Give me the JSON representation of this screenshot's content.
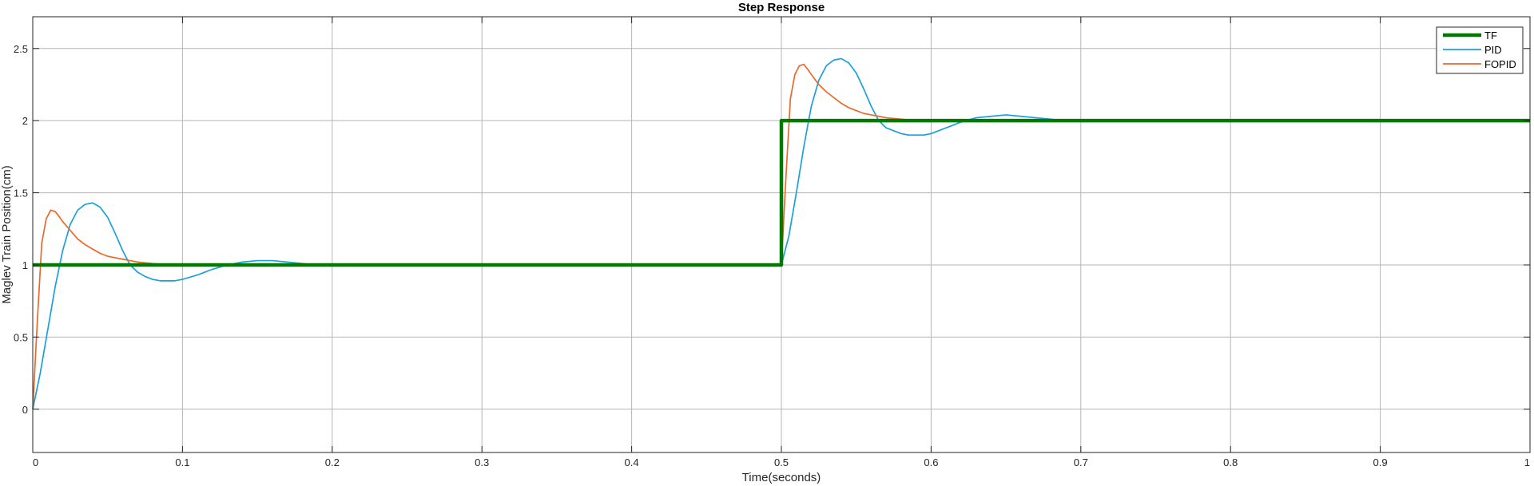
{
  "chart_data": {
    "type": "line",
    "title": "Step Response",
    "xlabel": "Time(seconds)",
    "ylabel": "Maglev Train Position(cm)",
    "xlim": [
      0,
      1
    ],
    "ylim": [
      -0.3,
      2.72
    ],
    "grid": true,
    "legend_position": "top-right",
    "x_ticks": [
      {
        "value": 0,
        "label": "0"
      },
      {
        "value": 0.1,
        "label": "0.1"
      },
      {
        "value": 0.2,
        "label": "0.2"
      },
      {
        "value": 0.3,
        "label": "0.3"
      },
      {
        "value": 0.4,
        "label": "0.4"
      },
      {
        "value": 0.5,
        "label": "0.5"
      },
      {
        "value": 0.6,
        "label": "0.6"
      },
      {
        "value": 0.7,
        "label": "0.7"
      },
      {
        "value": 0.8,
        "label": "0.8"
      },
      {
        "value": 0.9,
        "label": "0.9"
      },
      {
        "value": 1,
        "label": "1"
      }
    ],
    "y_ticks": [
      {
        "value": 0,
        "label": "0"
      },
      {
        "value": 0.5,
        "label": "0.5"
      },
      {
        "value": 1,
        "label": "1"
      },
      {
        "value": 1.5,
        "label": "1.5"
      },
      {
        "value": 2,
        "label": "2"
      },
      {
        "value": 2.5,
        "label": "2.5"
      }
    ],
    "series": [
      {
        "name": "TF",
        "color": "#007a00",
        "x": [
          0,
          0.5,
          0.5,
          1
        ],
        "y": [
          1,
          1,
          2,
          2
        ]
      },
      {
        "name": "PID",
        "color": "#1ca0dc",
        "x": [
          0,
          0.005,
          0.01,
          0.015,
          0.02,
          0.025,
          0.03,
          0.035,
          0.04,
          0.045,
          0.05,
          0.055,
          0.06,
          0.065,
          0.07,
          0.075,
          0.08,
          0.085,
          0.09,
          0.095,
          0.1,
          0.11,
          0.12,
          0.13,
          0.14,
          0.15,
          0.16,
          0.17,
          0.18,
          0.19,
          0.2,
          0.25,
          0.3,
          0.4,
          0.5,
          0.505,
          0.51,
          0.515,
          0.52,
          0.525,
          0.53,
          0.535,
          0.54,
          0.545,
          0.55,
          0.555,
          0.56,
          0.565,
          0.57,
          0.575,
          0.58,
          0.585,
          0.59,
          0.595,
          0.6,
          0.61,
          0.62,
          0.63,
          0.64,
          0.65,
          0.66,
          0.67,
          0.68,
          0.69,
          0.7,
          0.75,
          0.8,
          0.9,
          1
        ],
        "y": [
          0,
          0.25,
          0.55,
          0.85,
          1.1,
          1.28,
          1.38,
          1.42,
          1.43,
          1.4,
          1.33,
          1.22,
          1.1,
          1.0,
          0.95,
          0.92,
          0.9,
          0.89,
          0.89,
          0.89,
          0.9,
          0.93,
          0.97,
          1.0,
          1.02,
          1.03,
          1.03,
          1.02,
          1.01,
          1.0,
          1.0,
          1.0,
          1.0,
          1.0,
          1.0,
          1.2,
          1.5,
          1.82,
          2.1,
          2.28,
          2.38,
          2.42,
          2.43,
          2.4,
          2.33,
          2.22,
          2.1,
          2.0,
          1.95,
          1.93,
          1.91,
          1.9,
          1.9,
          1.9,
          1.91,
          1.95,
          1.99,
          2.02,
          2.03,
          2.04,
          2.03,
          2.02,
          2.01,
          2.0,
          2.0,
          2.0,
          2.0,
          2.0,
          2.0
        ]
      },
      {
        "name": "FOPID",
        "color": "#e8692a",
        "x": [
          0,
          0.003,
          0.006,
          0.009,
          0.012,
          0.015,
          0.018,
          0.02,
          0.025,
          0.03,
          0.035,
          0.04,
          0.045,
          0.05,
          0.055,
          0.06,
          0.065,
          0.07,
          0.08,
          0.09,
          0.1,
          0.12,
          0.15,
          0.2,
          0.3,
          0.5,
          0.503,
          0.506,
          0.509,
          0.512,
          0.515,
          0.518,
          0.52,
          0.525,
          0.53,
          0.535,
          0.54,
          0.545,
          0.55,
          0.555,
          0.56,
          0.565,
          0.57,
          0.58,
          0.59,
          0.6,
          0.62,
          0.65,
          0.7,
          0.8,
          1
        ],
        "y": [
          0,
          0.6,
          1.15,
          1.32,
          1.38,
          1.37,
          1.33,
          1.3,
          1.24,
          1.18,
          1.14,
          1.11,
          1.08,
          1.06,
          1.05,
          1.04,
          1.03,
          1.02,
          1.01,
          1.0,
          1.0,
          1.0,
          1.0,
          1.0,
          1.0,
          1.0,
          1.6,
          2.15,
          2.32,
          2.38,
          2.39,
          2.35,
          2.32,
          2.25,
          2.2,
          2.16,
          2.12,
          2.09,
          2.07,
          2.05,
          2.04,
          2.03,
          2.02,
          2.01,
          2.0,
          2.0,
          2.0,
          2.0,
          2.0,
          2.0,
          2.0
        ]
      }
    ]
  }
}
